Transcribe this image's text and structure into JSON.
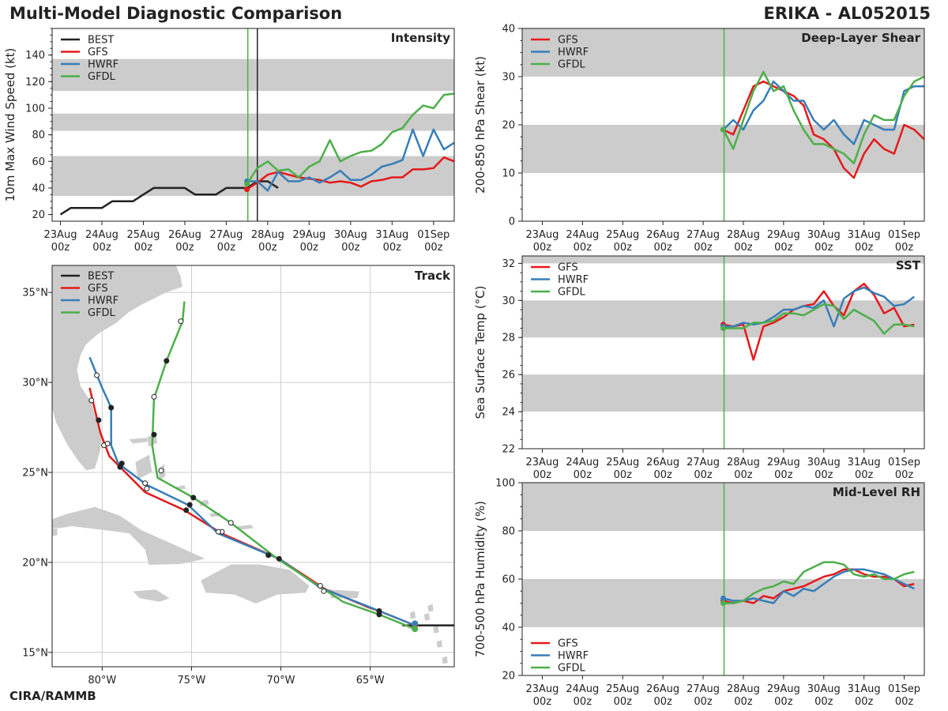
{
  "header": {
    "title": "Multi-Model Diagnostic Comparison",
    "storm": "ERIKA - AL052015",
    "credit": "CIRA/RAMMB"
  },
  "colors": {
    "BEST": "#222222",
    "GFS": "#e41a1c",
    "HWRF": "#377eb8",
    "GFDL": "#4daf4a",
    "band": "#cccccc",
    "land": "#cccccc",
    "grid": "#cccccc"
  },
  "time_ticks": [
    {
      "l1": "23Aug",
      "l2": "00z"
    },
    {
      "l1": "24Aug",
      "l2": "00z"
    },
    {
      "l1": "25Aug",
      "l2": "00z"
    },
    {
      "l1": "26Aug",
      "l2": "00z"
    },
    {
      "l1": "27Aug",
      "l2": "00z"
    },
    {
      "l1": "28Aug",
      "l2": "00z"
    },
    {
      "l1": "29Aug",
      "l2": "00z"
    },
    {
      "l1": "30Aug",
      "l2": "00z"
    },
    {
      "l1": "31Aug",
      "l2": "00z"
    },
    {
      "l1": "01Sep",
      "l2": "00z"
    }
  ],
  "chart_data": [
    {
      "id": "intensity",
      "type": "line",
      "title": "Intensity",
      "ylabel": "10m Max Wind Speed (kt)",
      "xlim": [
        -0.2,
        9.5
      ],
      "ylim": [
        15,
        160
      ],
      "yticks": [
        20,
        40,
        60,
        80,
        100,
        120,
        140
      ],
      "bands": [
        [
          34,
          64
        ],
        [
          83,
          96
        ],
        [
          113,
          137
        ]
      ],
      "vlines": [
        {
          "x": 4.52,
          "color": "#4daf4a"
        },
        {
          "x": 4.75,
          "color": "#222222"
        }
      ],
      "legend": [
        "BEST",
        "GFS",
        "HWRF",
        "GFDL"
      ],
      "series": [
        {
          "name": "BEST",
          "start": 0.0,
          "step": 0.25,
          "values": [
            20,
            25,
            25,
            25,
            25,
            30,
            30,
            30,
            35,
            40,
            40,
            40,
            40,
            35,
            35,
            35,
            40,
            40,
            40,
            45,
            45,
            40
          ]
        },
        {
          "name": "GFS",
          "start": 4.5,
          "step": 0.25,
          "values": [
            39,
            44,
            50,
            52,
            50,
            48,
            47,
            46,
            44,
            45,
            44,
            41,
            45,
            46,
            48,
            48,
            54,
            54,
            55,
            63,
            60
          ]
        },
        {
          "name": "HWRF",
          "start": 4.5,
          "step": 0.25,
          "values": [
            45,
            45,
            38,
            52,
            45,
            45,
            48,
            44,
            48,
            53,
            46,
            46,
            50,
            56,
            58,
            61,
            84,
            64,
            84,
            69,
            74
          ]
        },
        {
          "name": "GFDL",
          "start": 4.5,
          "step": 0.25,
          "values": [
            43,
            55,
            60,
            53,
            54,
            48,
            56,
            60,
            76,
            60,
            64,
            67,
            68,
            73,
            82,
            85,
            95,
            102,
            100,
            110,
            111
          ]
        }
      ]
    },
    {
      "id": "shear",
      "type": "line",
      "title": "Deep-Layer Shear",
      "ylabel": "200-850 hPa Shear (kt)",
      "xlim": [
        -0.5,
        9.5
      ],
      "ylim": [
        0,
        40
      ],
      "yticks": [
        0,
        10,
        20,
        30,
        40
      ],
      "bands": [
        [
          10,
          20
        ],
        [
          30,
          40
        ]
      ],
      "vlines": [
        {
          "x": 4.52,
          "color": "#4daf4a"
        }
      ],
      "legend": [
        "GFS",
        "HWRF",
        "GFDL"
      ],
      "series": [
        {
          "name": "GFS",
          "start": 4.5,
          "step": 0.25,
          "values": [
            19,
            18,
            23,
            28,
            29,
            28,
            27,
            26,
            24,
            18,
            17,
            15,
            11,
            9,
            14,
            17,
            15,
            14,
            20,
            19,
            17
          ]
        },
        {
          "name": "HWRF",
          "start": 4.5,
          "step": 0.25,
          "values": [
            19,
            21,
            19,
            23,
            25,
            29,
            27,
            25,
            25,
            21,
            19,
            21,
            18,
            16,
            21,
            20,
            19,
            19,
            27,
            28,
            28
          ]
        },
        {
          "name": "GFDL",
          "start": 4.5,
          "step": 0.25,
          "values": [
            19,
            15,
            21,
            27,
            31,
            27,
            28,
            23,
            19,
            16,
            16,
            15,
            14,
            12,
            18,
            22,
            21,
            21,
            26,
            29,
            30
          ]
        }
      ]
    },
    {
      "id": "sst",
      "type": "line",
      "title": "SST",
      "ylabel": "Sea Surface Temp (°C)",
      "xlim": [
        -0.5,
        9.5
      ],
      "ylim": [
        22,
        32.4
      ],
      "yticks": [
        22,
        24,
        26,
        28,
        30,
        32
      ],
      "bands": [
        [
          24,
          26
        ],
        [
          28,
          30
        ],
        [
          32,
          32.4
        ]
      ],
      "vlines": [
        {
          "x": 4.52,
          "color": "#4daf4a"
        }
      ],
      "legend": [
        "GFS",
        "HWRF",
        "GFDL"
      ],
      "series": [
        {
          "name": "GFS",
          "start": 4.5,
          "step": 0.25,
          "values": [
            28.7,
            28.6,
            28.7,
            26.8,
            28.6,
            28.8,
            29.1,
            29.5,
            29.7,
            29.8,
            30.5,
            29.7,
            29.2,
            30.5,
            30.9,
            30.3,
            29.3,
            29.6,
            28.6,
            28.7
          ]
        },
        {
          "name": "HWRF",
          "start": 4.5,
          "step": 0.25,
          "values": [
            28.6,
            28.6,
            28.8,
            28.7,
            28.8,
            29.1,
            29.5,
            29.5,
            29.7,
            29.6,
            30.0,
            28.6,
            30.1,
            30.5,
            30.7,
            30.4,
            30.2,
            29.7,
            29.8,
            30.2
          ]
        },
        {
          "name": "GFDL",
          "start": 4.5,
          "step": 0.25,
          "values": [
            28.5,
            28.5,
            28.5,
            28.8,
            28.8,
            28.9,
            29.3,
            29.3,
            29.2,
            29.5,
            29.8,
            29.7,
            29.0,
            29.5,
            29.2,
            28.9,
            28.2,
            28.7,
            28.7,
            28.6
          ]
        }
      ]
    },
    {
      "id": "rh",
      "type": "line",
      "title": "Mid-Level RH",
      "ylabel": "700-500 hPa Humidity (%)",
      "xlim": [
        -0.5,
        9.5
      ],
      "ylim": [
        20,
        100
      ],
      "yticks": [
        20,
        40,
        60,
        80,
        100
      ],
      "bands": [
        [
          40,
          60
        ],
        [
          80,
          100
        ]
      ],
      "vlines": [
        {
          "x": 4.52,
          "color": "#4daf4a"
        }
      ],
      "legend": [
        "GFS",
        "HWRF",
        "GFDL"
      ],
      "series": [
        {
          "name": "GFS",
          "start": 4.5,
          "step": 0.25,
          "values": [
            51,
            50,
            51,
            50,
            53,
            52,
            55,
            56,
            57,
            59,
            61,
            62,
            64,
            64,
            62,
            61,
            61,
            60,
            57,
            58
          ]
        },
        {
          "name": "HWRF",
          "start": 4.5,
          "step": 0.25,
          "values": [
            52,
            51,
            51,
            52,
            51,
            50,
            55,
            53,
            56,
            55,
            58,
            61,
            63,
            64,
            64,
            63,
            62,
            60,
            58,
            56
          ]
        },
        {
          "name": "GFDL",
          "start": 4.5,
          "step": 0.25,
          "values": [
            50,
            50,
            51,
            54,
            56,
            57,
            59,
            58,
            63,
            65,
            67,
            67,
            66,
            62,
            61,
            62,
            60,
            60,
            62,
            63
          ]
        }
      ]
    },
    {
      "id": "track",
      "type": "map",
      "title": "Track",
      "lonlim": [
        -82.8,
        -60.3
      ],
      "latlim": [
        14.2,
        36.5
      ],
      "lonticks": [
        -80,
        -75,
        -70,
        -65
      ],
      "latticks": [
        15,
        20,
        25,
        30,
        35
      ],
      "lonlabels": [
        "80°W",
        "75°W",
        "70°W",
        "65°W"
      ],
      "latlabels": [
        "15°N",
        "20°N",
        "25°N",
        "30°N",
        "35°N"
      ],
      "legend": [
        "BEST",
        "GFS",
        "HWRF",
        "GFDL"
      ],
      "tracks": [
        {
          "name": "BEST",
          "points": [
            [
              -60.3,
              16.5
            ],
            [
              -61.3,
              16.5
            ],
            [
              -62.3,
              16.5
            ],
            [
              -63.2,
              16.5
            ]
          ]
        },
        {
          "name": "GFS",
          "points": [
            [
              -62.5,
              16.5
            ],
            [
              -64.5,
              17.3
            ],
            [
              -65.1,
              17.5
            ],
            [
              -67.5,
              18.5
            ],
            [
              -70.1,
              20.2
            ],
            [
              -73.3,
              21.6
            ],
            [
              -75.4,
              22.9
            ],
            [
              -77.6,
              23.9
            ],
            [
              -78.7,
              25.0
            ],
            [
              -79.6,
              25.9
            ],
            [
              -80.1,
              27.2
            ],
            [
              -80.7,
              29.7
            ]
          ]
        },
        {
          "name": "HWRF",
          "points": [
            [
              -62.5,
              16.5
            ],
            [
              -64.5,
              17.3
            ],
            [
              -65.0,
              17.5
            ],
            [
              -67.8,
              18.6
            ],
            [
              -70.1,
              20.2
            ],
            [
              -73.5,
              21.6
            ],
            [
              -75.2,
              23.2
            ],
            [
              -77.5,
              24.3
            ],
            [
              -79.1,
              25.5
            ],
            [
              -79.5,
              26.5
            ],
            [
              -79.5,
              28.6
            ],
            [
              -80.0,
              29.7
            ],
            [
              -80.7,
              31.4
            ]
          ]
        },
        {
          "name": "GFDL",
          "points": [
            [
              -62.5,
              16.3
            ],
            [
              -64.5,
              17.1
            ],
            [
              -66.5,
              17.8
            ],
            [
              -68.5,
              19.1
            ],
            [
              -70.2,
              20.2
            ],
            [
              -72.8,
              22.2
            ],
            [
              -74.9,
              23.6
            ],
            [
              -76.9,
              24.7
            ],
            [
              -77.2,
              26.5
            ],
            [
              -77.1,
              29.1
            ],
            [
              -76.4,
              31.2
            ],
            [
              -75.5,
              33.4
            ],
            [
              -75.4,
              34.5
            ]
          ]
        }
      ],
      "markers": [
        {
          "track": "GFS",
          "lon": -64.5,
          "lat": 17.1,
          "fill": "dark"
        },
        {
          "track": "GFS",
          "lon": -67.6,
          "lat": 18.4,
          "fill": "open"
        },
        {
          "track": "GFS",
          "lon": -70.7,
          "lat": 20.4,
          "fill": "dark"
        },
        {
          "track": "GFS",
          "lon": -73.3,
          "lat": 21.7,
          "fill": "open"
        },
        {
          "track": "GFS",
          "lon": -75.3,
          "lat": 22.9,
          "fill": "dark"
        },
        {
          "track": "GFS",
          "lon": -77.5,
          "lat": 24.1,
          "fill": "open"
        },
        {
          "track": "GFS",
          "lon": -79.0,
          "lat": 25.3,
          "fill": "dark"
        },
        {
          "track": "GFS",
          "lon": -79.9,
          "lat": 26.5,
          "fill": "open"
        },
        {
          "track": "GFS",
          "lon": -80.2,
          "lat": 27.9,
          "fill": "dark"
        },
        {
          "track": "GFS",
          "lon": -80.6,
          "lat": 29.0,
          "fill": "open"
        },
        {
          "track": "HWRF",
          "lon": -64.5,
          "lat": 17.3,
          "fill": "dark"
        },
        {
          "track": "HWRF",
          "lon": -67.8,
          "lat": 18.7,
          "fill": "open"
        },
        {
          "track": "HWRF",
          "lon": -70.1,
          "lat": 20.2,
          "fill": "dark"
        },
        {
          "track": "HWRF",
          "lon": -73.5,
          "lat": 21.7,
          "fill": "open"
        },
        {
          "track": "HWRF",
          "lon": -75.1,
          "lat": 23.2,
          "fill": "dark"
        },
        {
          "track": "HWRF",
          "lon": -77.6,
          "lat": 24.4,
          "fill": "open"
        },
        {
          "track": "HWRF",
          "lon": -78.9,
          "lat": 25.5,
          "fill": "dark"
        },
        {
          "track": "HWRF",
          "lon": -79.7,
          "lat": 26.6,
          "fill": "open"
        },
        {
          "track": "HWRF",
          "lon": -79.5,
          "lat": 28.6,
          "fill": "dark"
        },
        {
          "track": "HWRF",
          "lon": -80.3,
          "lat": 30.4,
          "fill": "open"
        },
        {
          "track": "GFDL",
          "lon": -72.8,
          "lat": 22.2,
          "fill": "open"
        },
        {
          "track": "GFDL",
          "lon": -74.9,
          "lat": 23.6,
          "fill": "dark"
        },
        {
          "track": "GFDL",
          "lon": -76.7,
          "lat": 25.1,
          "fill": "open"
        },
        {
          "track": "GFDL",
          "lon": -77.1,
          "lat": 27.1,
          "fill": "dark"
        },
        {
          "track": "GFDL",
          "lon": -77.1,
          "lat": 29.2,
          "fill": "open"
        },
        {
          "track": "GFDL",
          "lon": -76.4,
          "lat": 31.2,
          "fill": "dark"
        },
        {
          "track": "GFDL",
          "lon": -75.6,
          "lat": 33.4,
          "fill": "open"
        }
      ],
      "start_markers": [
        {
          "track": "GFS",
          "lon": -62.5,
          "lat": 16.5
        },
        {
          "track": "HWRF",
          "lon": -62.5,
          "lat": 16.6
        },
        {
          "track": "GFDL",
          "lon": -62.5,
          "lat": 16.3
        }
      ]
    }
  ]
}
